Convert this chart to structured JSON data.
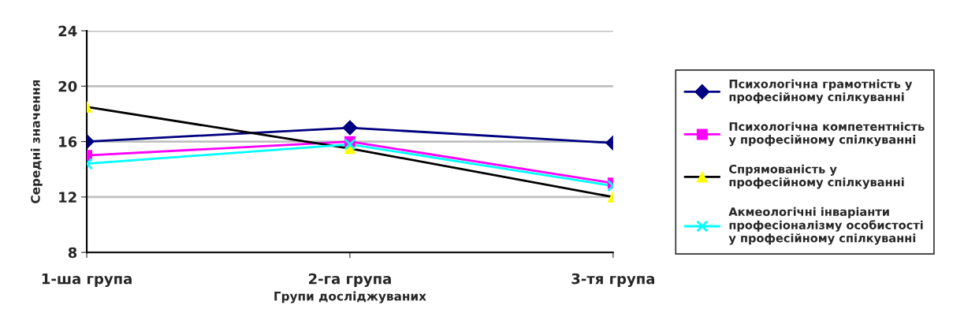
{
  "chart_data": {
    "type": "line",
    "xlabel": "Групи досліджуваних",
    "ylabel": "Середні значення",
    "categories": [
      "1-ша група",
      "2-га група",
      "3-тя група"
    ],
    "ylim": [
      8,
      24
    ],
    "yticks": [
      8,
      12,
      16,
      20,
      24
    ],
    "grid": "y",
    "legend": "right",
    "series": [
      {
        "name": "Психологічна грамотність у\nпрофесійному спілкуванні",
        "color": "#000080",
        "marker": "diamond",
        "values": [
          16,
          17,
          15.9
        ]
      },
      {
        "name": "Психологічна компетентність\nу професійному спілкуванні",
        "color": "#ff00ff",
        "marker": "square",
        "values": [
          15,
          16,
          13
        ]
      },
      {
        "name": "Спрямованість у\nпрофесійному спілкуванні",
        "color": "#000000",
        "colors": [
          "#ffff00",
          "#ffff00",
          "#ffff00"
        ],
        "marker": "triangle",
        "values": [
          18.5,
          15.5,
          12
        ]
      },
      {
        "name": "Акмеологічні інваріанти\nпрофесіоналізму особистості\nу професійному спілкуванні",
        "color": "#00ffff",
        "marker": "cross",
        "values": [
          14.4,
          15.8,
          12.8
        ]
      }
    ]
  }
}
